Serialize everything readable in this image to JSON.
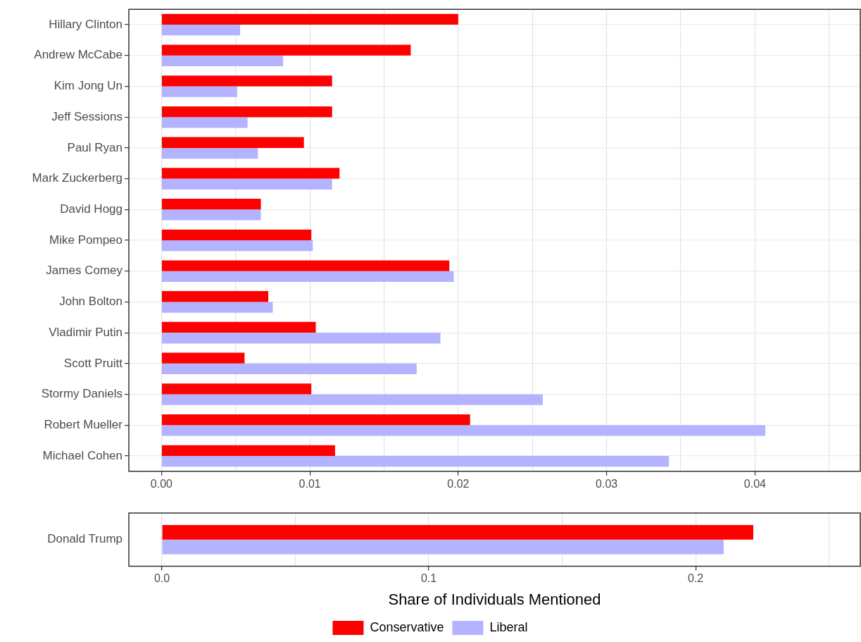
{
  "chart_data": [
    {
      "type": "bar",
      "orientation": "horizontal",
      "categories": [
        "Hillary Clinton",
        "Andrew McCabe",
        "Kim Jong Un",
        "Jeff Sessions",
        "Paul Ryan",
        "Mark Zuckerberg",
        "David Hogg",
        "Mike Pompeo",
        "James Comey",
        "John Bolton",
        "Vladimir Putin",
        "Scott Pruitt",
        "Stormy Daniels",
        "Robert Mueller",
        "Michael Cohen"
      ],
      "series": [
        {
          "color": "#ff0000",
          "values": [
            0.02,
            0.0168,
            0.0115,
            0.0115,
            0.0096,
            0.012,
            0.0067,
            0.0101,
            0.0194,
            0.0072,
            0.0104,
            0.0056,
            0.0101,
            0.0208,
            0.0117
          ]
        },
        {
          "color": "#b3b3ff",
          "values": [
            0.0053,
            0.0082,
            0.0051,
            0.0058,
            0.0065,
            0.0115,
            0.0067,
            0.0102,
            0.0197,
            0.0075,
            0.0188,
            0.0172,
            0.0257,
            0.0407,
            0.0342
          ]
        }
      ],
      "xlim": [
        -0.0022,
        0.0471
      ],
      "xticks": [
        {
          "value": 0,
          "label": "0.00"
        },
        {
          "value": 0.005,
          "label": null
        },
        {
          "value": 0.01,
          "label": "0.01"
        },
        {
          "value": 0.015,
          "label": null
        },
        {
          "value": 0.02,
          "label": "0.02"
        },
        {
          "value": 0.025,
          "label": null
        },
        {
          "value": 0.03,
          "label": "0.03"
        },
        {
          "value": 0.035,
          "label": null
        },
        {
          "value": 0.04,
          "label": "0.04"
        },
        {
          "value": 0.045,
          "label": null
        }
      ],
      "grid": true
    },
    {
      "type": "bar",
      "orientation": "horizontal",
      "categories": [
        "Donald Trump"
      ],
      "series": [
        {
          "name": "Conservative",
          "color": "#ff0000",
          "values": [
            0.2216
          ]
        },
        {
          "name": "Liberal",
          "color": "#b3b3ff",
          "values": [
            0.2105
          ]
        }
      ],
      "xlim": [
        -0.0124,
        0.2617
      ],
      "xticks": [
        {
          "value": 0,
          "label": "0.0"
        },
        {
          "value": 0.05,
          "label": null
        },
        {
          "value": 0.1,
          "label": "0.1"
        },
        {
          "value": 0.15,
          "label": null
        },
        {
          "value": 0.2,
          "label": "0.2"
        },
        {
          "value": 0.25,
          "label": null
        }
      ],
      "grid": true,
      "xlabel": "Share of Individuals Mentioned",
      "legend": "bottom"
    }
  ]
}
